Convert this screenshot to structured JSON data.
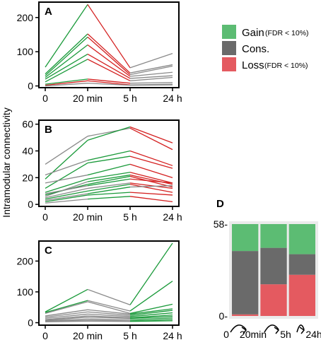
{
  "ylabel": "Intramodular connectivity",
  "x_categories": [
    "0",
    "20 min",
    "5 h",
    "24 h"
  ],
  "colors": {
    "gain": "#1a9a3a",
    "cons": "#8a8a8a",
    "loss": "#d42020"
  },
  "legend": [
    {
      "key": "gain",
      "label": "Gain",
      "sub": "(FDR < 10%)",
      "color": "#5cbc73"
    },
    {
      "key": "cons",
      "label": "Cons.",
      "sub": "",
      "color": "#6a6a6a"
    },
    {
      "key": "loss",
      "label": "Loss",
      "sub": "(FDR < 10%)",
      "color": "#e45a60"
    }
  ],
  "chart_data": [
    {
      "panel": "A",
      "type": "line",
      "categories": [
        "0",
        "20 min",
        "5 h",
        "24 h"
      ],
      "ylim": [
        -5,
        245
      ],
      "yticks": [
        0,
        100,
        200
      ],
      "series": [
        {
          "group": "gain",
          "values": [
            55,
            238,
            53,
            95
          ],
          "segment_groups": [
            "gain",
            "loss",
            "cons"
          ]
        },
        {
          "group": "gain",
          "values": [
            35,
            152,
            38,
            62
          ],
          "segment_groups": [
            "gain",
            "loss",
            "cons"
          ]
        },
        {
          "group": "gain",
          "values": [
            30,
            143,
            33,
            58
          ],
          "segment_groups": [
            "gain",
            "loss",
            "cons"
          ]
        },
        {
          "group": "gain",
          "values": [
            25,
            120,
            28,
            40
          ],
          "segment_groups": [
            "gain",
            "loss",
            "cons"
          ]
        },
        {
          "group": "gain",
          "values": [
            20,
            93,
            22,
            30
          ],
          "segment_groups": [
            "gain",
            "loss",
            "cons"
          ]
        },
        {
          "group": "gain",
          "values": [
            12,
            78,
            15,
            25
          ],
          "segment_groups": [
            "gain",
            "loss",
            "cons"
          ]
        },
        {
          "group": "gain",
          "values": [
            5,
            20,
            8,
            10
          ],
          "segment_groups": [
            "gain",
            "loss",
            "cons"
          ]
        },
        {
          "group": "loss",
          "values": [
            2,
            15,
            3,
            5
          ],
          "segment_groups": [
            "loss",
            "loss",
            "cons"
          ]
        },
        {
          "group": "cons",
          "values": [
            0,
            8,
            2,
            3
          ],
          "segment_groups": [
            "cons",
            "cons",
            "cons"
          ]
        }
      ]
    },
    {
      "panel": "B",
      "type": "line",
      "categories": [
        "0",
        "20 min",
        "5 h",
        "24 h"
      ],
      "ylim": [
        -1.5,
        63
      ],
      "yticks": [
        0,
        20,
        40,
        60
      ],
      "series": [
        {
          "group": "cons",
          "values": [
            30,
            51,
            57,
            41
          ],
          "segment_groups": [
            "cons",
            "cons",
            "loss"
          ]
        },
        {
          "group": "gain",
          "values": [
            19,
            48,
            58,
            46
          ],
          "segment_groups": [
            "gain",
            "gain",
            "loss"
          ]
        },
        {
          "group": "cons",
          "values": [
            22,
            33,
            40,
            29
          ],
          "segment_groups": [
            "cons",
            "gain",
            "loss"
          ]
        },
        {
          "group": "gain",
          "values": [
            12,
            31,
            36,
            27
          ],
          "segment_groups": [
            "gain",
            "gain",
            "loss"
          ]
        },
        {
          "group": "cons",
          "values": [
            16,
            22,
            30,
            20
          ],
          "segment_groups": [
            "cons",
            "gain",
            "loss"
          ]
        },
        {
          "group": "gain",
          "values": [
            9,
            19,
            24,
            16
          ],
          "segment_groups": [
            "gain",
            "gain",
            "loss"
          ]
        },
        {
          "group": "cons",
          "values": [
            6,
            17,
            22,
            15
          ],
          "segment_groups": [
            "cons",
            "gain",
            "loss"
          ]
        },
        {
          "group": "gain",
          "values": [
            7,
            15,
            21,
            13
          ],
          "segment_groups": [
            "gain",
            "gain",
            "loss"
          ]
        },
        {
          "group": "cons",
          "values": [
            8,
            14,
            19,
            16
          ],
          "segment_groups": [
            "cons",
            "gain",
            "loss"
          ]
        },
        {
          "group": "cons",
          "values": [
            5,
            12,
            16,
            12
          ],
          "segment_groups": [
            "cons",
            "cons",
            "loss"
          ]
        },
        {
          "group": "gain",
          "values": [
            4,
            10,
            15,
            9
          ],
          "segment_groups": [
            "gain",
            "gain",
            "loss"
          ]
        },
        {
          "group": "cons",
          "values": [
            3,
            8,
            13,
            14
          ],
          "segment_groups": [
            "cons",
            "gain",
            "cons"
          ]
        },
        {
          "group": "gain",
          "values": [
            2,
            7,
            9,
            7
          ],
          "segment_groups": [
            "gain",
            "gain",
            "loss"
          ]
        },
        {
          "group": "cons",
          "values": [
            1,
            4,
            6,
            2
          ],
          "segment_groups": [
            "cons",
            "gain",
            "loss"
          ]
        }
      ]
    },
    {
      "panel": "C",
      "type": "line",
      "categories": [
        "0",
        "20 min",
        "5 h",
        "24 h"
      ],
      "ylim": [
        -8,
        265
      ],
      "yticks": [
        0,
        100,
        200
      ],
      "series": [
        {
          "group": "gain",
          "values": [
            35,
            108,
            58,
            258
          ],
          "segment_groups": [
            "gain",
            "cons",
            "gain"
          ]
        },
        {
          "group": "gain",
          "values": [
            33,
            72,
            38,
            135
          ],
          "segment_groups": [
            "gain",
            "cons",
            "gain"
          ]
        },
        {
          "group": "cons",
          "values": [
            30,
            68,
            30,
            60
          ],
          "segment_groups": [
            "cons",
            "cons",
            "gain"
          ]
        },
        {
          "group": "cons",
          "values": [
            22,
            42,
            28,
            45
          ],
          "segment_groups": [
            "cons",
            "cons",
            "gain"
          ]
        },
        {
          "group": "cons",
          "values": [
            18,
            35,
            24,
            40
          ],
          "segment_groups": [
            "cons",
            "cons",
            "gain"
          ]
        },
        {
          "group": "cons",
          "values": [
            14,
            28,
            20,
            32
          ],
          "segment_groups": [
            "cons",
            "cons",
            "gain"
          ]
        },
        {
          "group": "cons",
          "values": [
            10,
            22,
            16,
            25
          ],
          "segment_groups": [
            "cons",
            "cons",
            "gain"
          ]
        },
        {
          "group": "cons",
          "values": [
            8,
            18,
            14,
            20
          ],
          "segment_groups": [
            "cons",
            "cons",
            "gain"
          ]
        },
        {
          "group": "cons",
          "values": [
            6,
            12,
            10,
            15
          ],
          "segment_groups": [
            "cons",
            "cons",
            "gain"
          ]
        },
        {
          "group": "cons",
          "values": [
            4,
            8,
            6,
            10
          ],
          "segment_groups": [
            "cons",
            "cons",
            "gain"
          ]
        },
        {
          "group": "cons",
          "values": [
            3,
            5,
            4,
            6
          ],
          "segment_groups": [
            "cons",
            "cons",
            "gain"
          ]
        }
      ]
    },
    {
      "panel": "D",
      "type": "bar",
      "stacked": true,
      "ylim": [
        0,
        58
      ],
      "yticks": [
        0,
        58
      ],
      "ytick_labels": [
        "0-",
        "58-"
      ],
      "transition_labels": [
        "0",
        "20min",
        "5h",
        "24h"
      ],
      "bars": [
        {
          "transition": "0 to 20min",
          "loss": 1,
          "cons": 40,
          "gain": 17
        },
        {
          "transition": "20min to 5h",
          "loss": 20,
          "cons": 23,
          "gain": 15
        },
        {
          "transition": "5h to 24h",
          "loss": 26,
          "cons": 13,
          "gain": 19
        }
      ]
    }
  ]
}
